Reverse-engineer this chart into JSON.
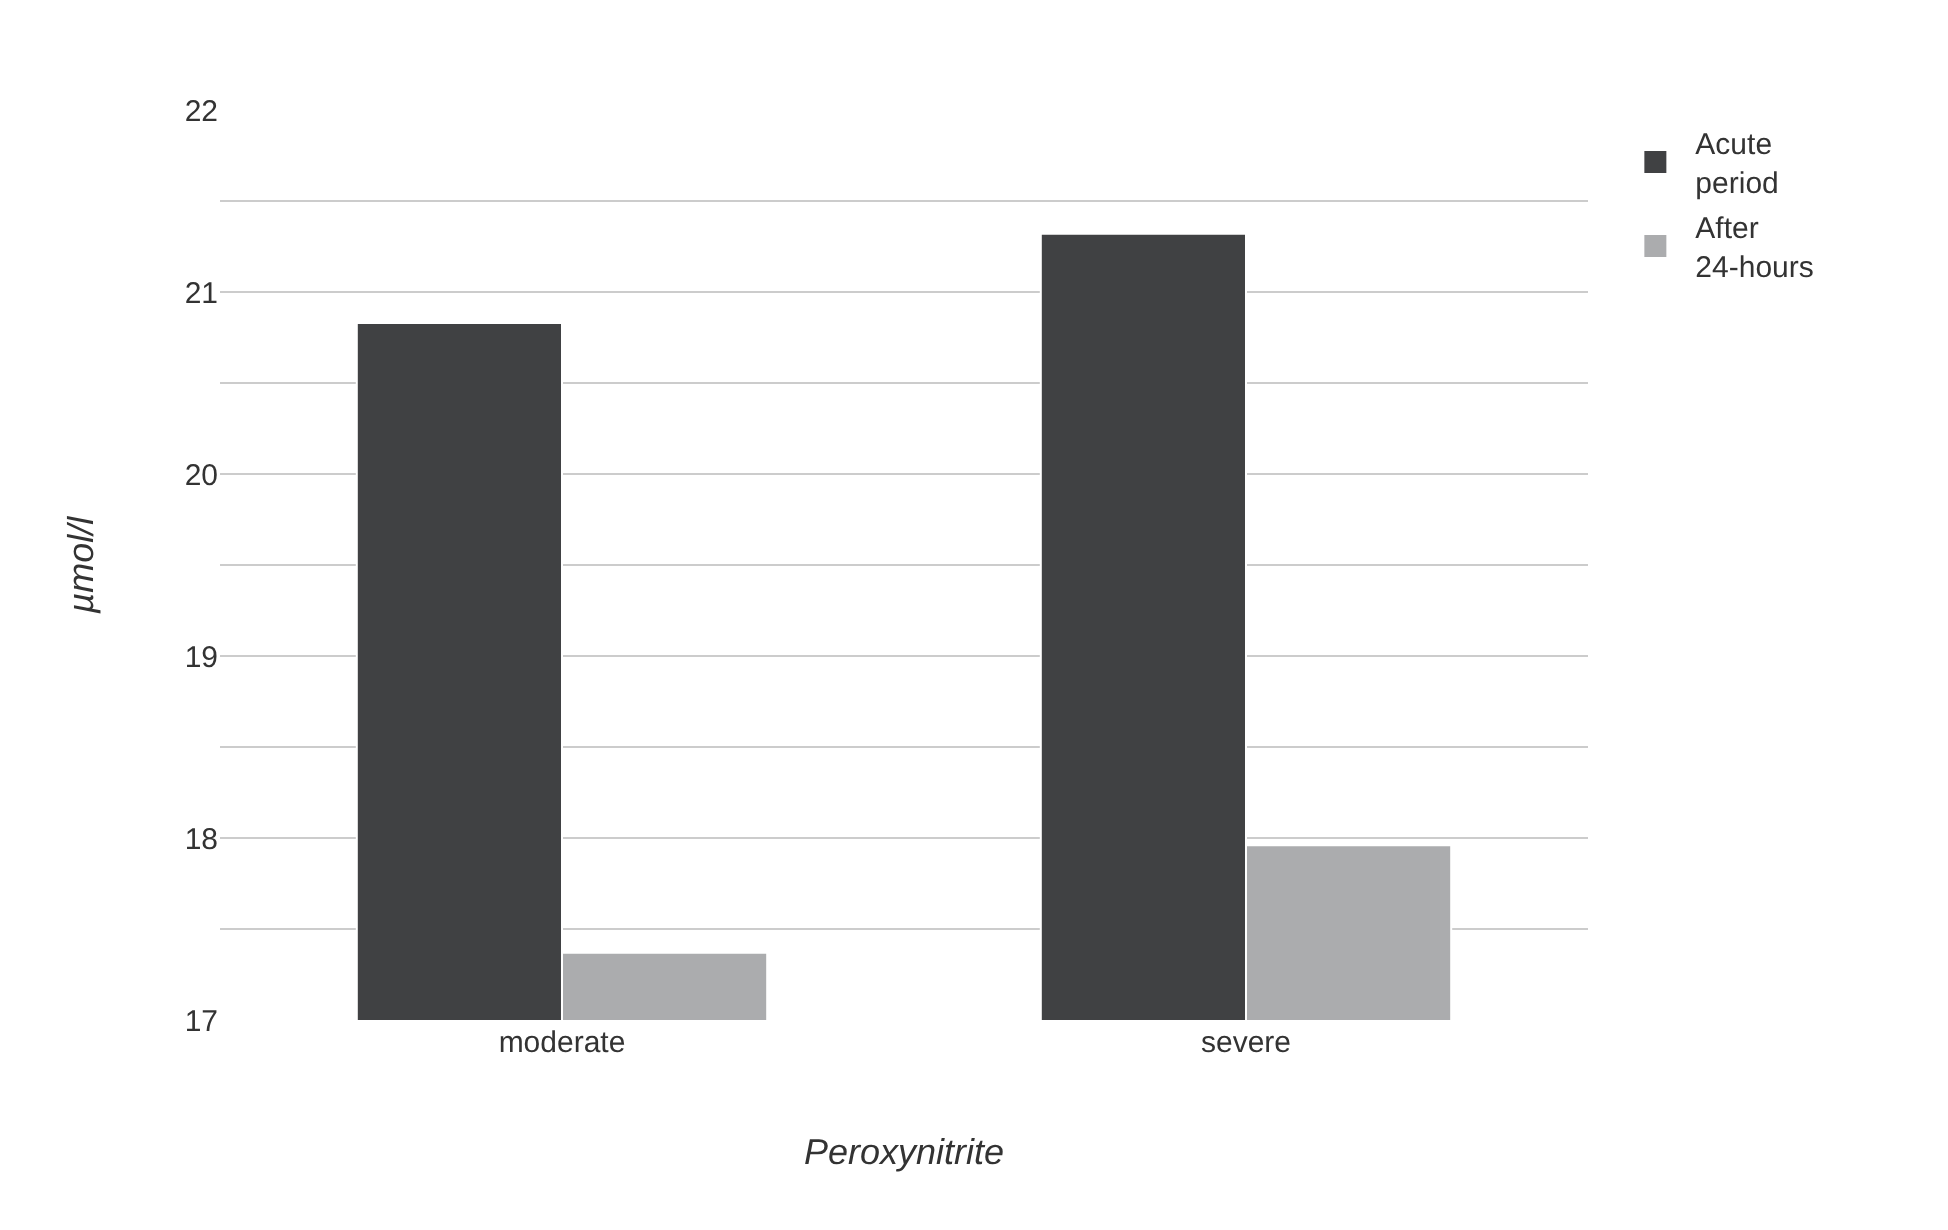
{
  "chart_data": {
    "type": "bar",
    "xlabel": "Peroxynitrite",
    "ylabel": "µmol/l",
    "categories": [
      "moderate",
      "severe"
    ],
    "series": [
      {
        "name": "Acute period",
        "color": "#404143",
        "values": [
          20.83,
          21.32
        ]
      },
      {
        "name": "After 24-hours",
        "color": "#abacae",
        "values": [
          17.37,
          17.96
        ]
      }
    ],
    "ylim": [
      17,
      22
    ],
    "yticks": [
      17,
      {
        "value": 17.5,
        "label": null
      },
      18,
      {
        "value": 18.5,
        "label": null
      },
      19,
      {
        "value": 19.5,
        "label": null
      },
      20,
      {
        "value": 20.5,
        "label": null
      },
      21,
      {
        "value": 21.5,
        "label": null
      },
      22
    ],
    "grid": "y",
    "legend": "top right"
  }
}
